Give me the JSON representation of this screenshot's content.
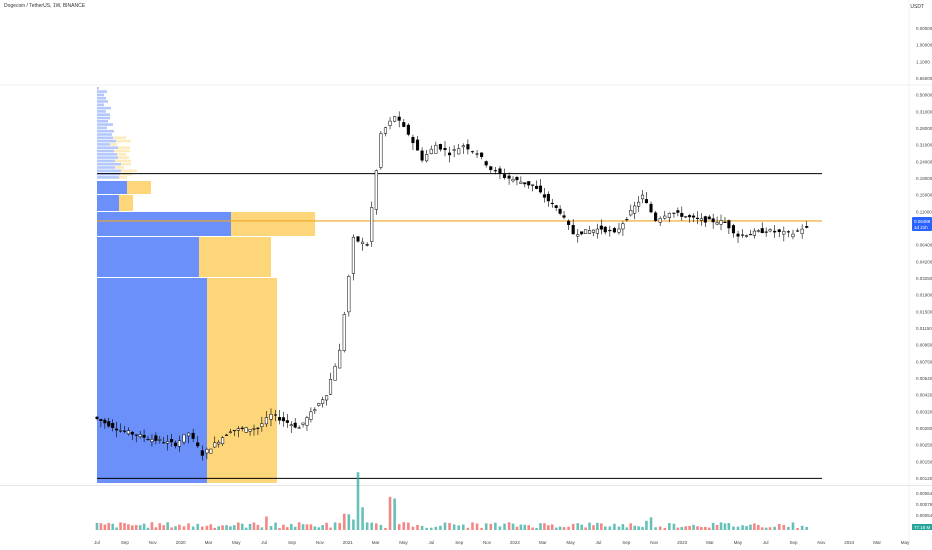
{
  "header": {
    "title": "Dogecoin / TetherUS, 1W, BINANCE",
    "currency": "USDT"
  },
  "colors": {
    "background": "#ffffff",
    "candle": "#000000",
    "volume_up": "#26a69a",
    "volume_down": "#ef5350",
    "profile_up": "#5b84f8",
    "profile_down": "#fcd26a",
    "poc_line": "#f0a522",
    "level_line": "#000000",
    "last_price_bg": "#2962ff",
    "volume_tag_bg": "#26a69a"
  },
  "chart_data": {
    "type": "candlestick",
    "title": "Dogecoin / TetherUS, 1W, BINANCE",
    "scale": "log",
    "price_ticks": [
      "0.00000",
      "1.00000",
      "1.1000",
      "0.65000",
      "0.50000",
      "0.31000",
      "0.28000",
      "0.31000",
      "0.24000",
      "0.19000",
      "0.15000",
      "0.11000",
      "0.09000",
      "0.06400",
      "0.04200",
      "0.03250",
      "0.01900",
      "0.01500",
      "0.01150",
      "0.00950",
      "0.00750",
      "0.00540",
      "0.00420",
      "0.00320",
      "0.00280",
      "0.00250",
      "0.00150",
      "0.00120"
    ],
    "time_ticks": [
      "Jul",
      "Sep",
      "Nov",
      "2020",
      "Mar",
      "May",
      "Jul",
      "Sep",
      "Nov",
      "2021",
      "Mar",
      "May",
      "Jul",
      "Sep",
      "Nov",
      "2022",
      "Mar",
      "May",
      "Jul",
      "Sep",
      "Nov",
      "2023",
      "Mar",
      "May",
      "Jul",
      "Sep",
      "Nov",
      "2024",
      "Mar",
      "May"
    ],
    "horizontal_levels": [
      0.158,
      0.00115
    ],
    "poc_level": 0.0735,
    "last_price": "0.06488",
    "last_price_sub": "1d 21h",
    "volume_ticks": [
      "0.00064",
      "0.00078",
      "0.00054",
      "0.00044"
    ],
    "volume_last": "77.18 M",
    "price_series": [
      {
        "date": "2019-07",
        "value": 0.0031
      },
      {
        "date": "2019-09",
        "value": 0.0025
      },
      {
        "date": "2019-11",
        "value": 0.0022
      },
      {
        "date": "2020-01",
        "value": 0.002
      },
      {
        "date": "2020-02",
        "value": 0.0024
      },
      {
        "date": "2020-03",
        "value": 0.0017
      },
      {
        "date": "2020-05",
        "value": 0.0025
      },
      {
        "date": "2020-07",
        "value": 0.0026
      },
      {
        "date": "2020-08",
        "value": 0.0032
      },
      {
        "date": "2020-10",
        "value": 0.0026
      },
      {
        "date": "2020-12",
        "value": 0.0045
      },
      {
        "date": "2021-01",
        "value": 0.009
      },
      {
        "date": "2021-02",
        "value": 0.055
      },
      {
        "date": "2021-03",
        "value": 0.05
      },
      {
        "date": "2021-04",
        "value": 0.3
      },
      {
        "date": "2021-05",
        "value": 0.4
      },
      {
        "date": "2021-06",
        "value": 0.3
      },
      {
        "date": "2021-07",
        "value": 0.2
      },
      {
        "date": "2021-08",
        "value": 0.25
      },
      {
        "date": "2021-09",
        "value": 0.22
      },
      {
        "date": "2021-10",
        "value": 0.25
      },
      {
        "date": "2021-11",
        "value": 0.22
      },
      {
        "date": "2021-12",
        "value": 0.17
      },
      {
        "date": "2022-01",
        "value": 0.15
      },
      {
        "date": "2022-03",
        "value": 0.13
      },
      {
        "date": "2022-05",
        "value": 0.085
      },
      {
        "date": "2022-06",
        "value": 0.06
      },
      {
        "date": "2022-08",
        "value": 0.065
      },
      {
        "date": "2022-09",
        "value": 0.06
      },
      {
        "date": "2022-11",
        "value": 0.11
      },
      {
        "date": "2022-12",
        "value": 0.075
      },
      {
        "date": "2023-01",
        "value": 0.085
      },
      {
        "date": "2023-03",
        "value": 0.075
      },
      {
        "date": "2023-05",
        "value": 0.072
      },
      {
        "date": "2023-06",
        "value": 0.058
      },
      {
        "date": "2023-08",
        "value": 0.063
      },
      {
        "date": "2023-09",
        "value": 0.061
      },
      {
        "date": "2023-10",
        "value": 0.06
      },
      {
        "date": "2023-11",
        "value": 0.068
      }
    ]
  }
}
